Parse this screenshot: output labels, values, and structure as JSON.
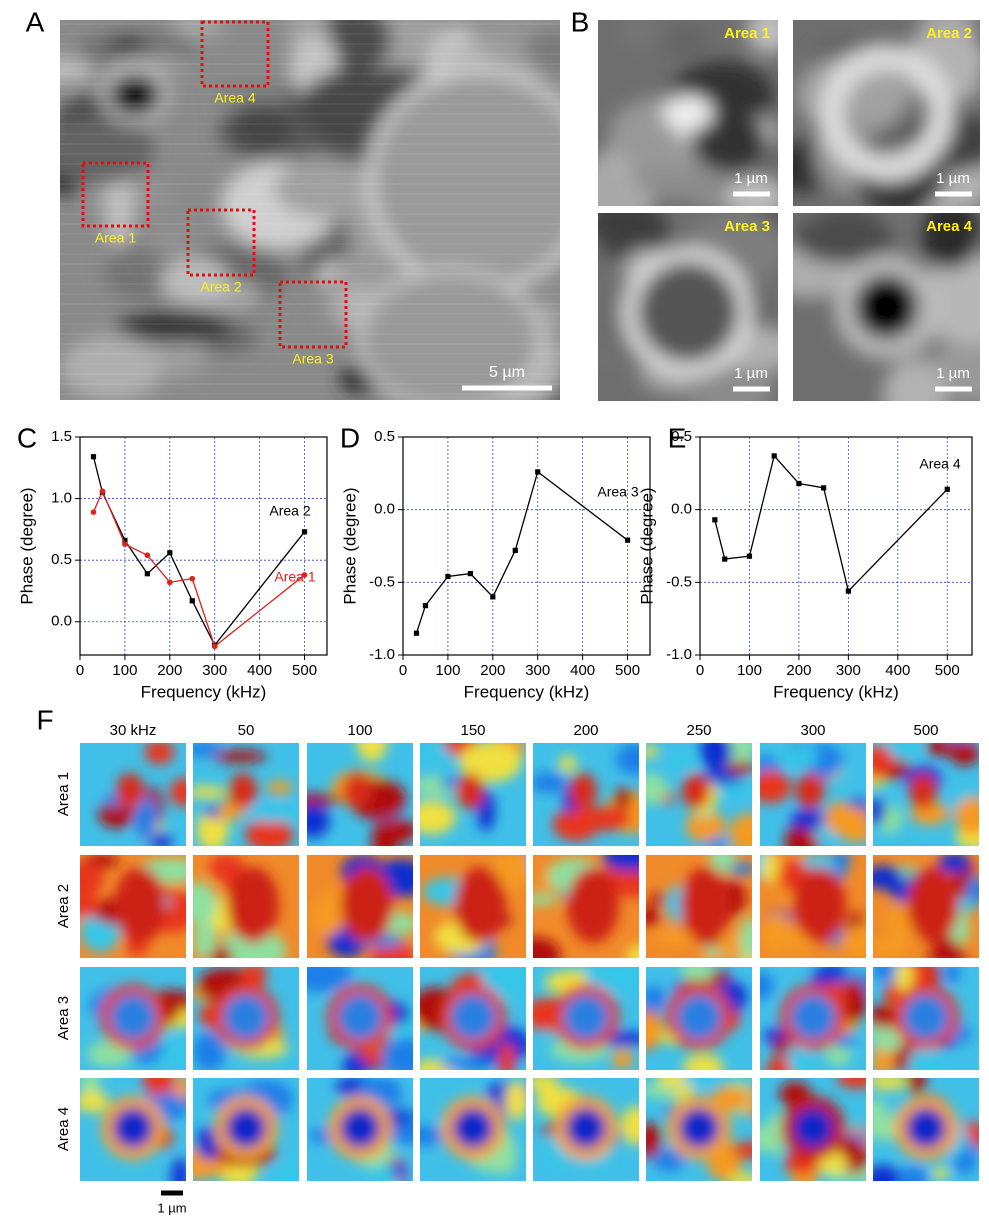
{
  "chart_data": [
    {
      "type": "line",
      "xlabel": "Frequency (kHz)",
      "ylabel": "Phase (degree)",
      "x": [
        30,
        50,
        100,
        150,
        200,
        250,
        300,
        500
      ],
      "series": [
        {
          "name": "Area 2",
          "color": "#000000",
          "marker": "square",
          "values": [
            1.34,
            1.05,
            0.66,
            0.39,
            0.56,
            0.17,
            -0.19,
            0.73
          ]
        },
        {
          "name": "Area 1",
          "color": "#e0201b",
          "marker": "circle",
          "values": [
            0.89,
            1.06,
            0.63,
            0.54,
            0.32,
            0.35,
            -0.2,
            0.38
          ]
        }
      ],
      "xlim": [
        0,
        550
      ],
      "xticks": [
        0,
        100,
        200,
        300,
        400,
        500
      ],
      "ylim": [
        -0.27,
        1.5
      ],
      "yticks": [
        {
          "value": 0,
          "label": "0.0"
        },
        0.5,
        {
          "value": 1,
          "label": "1.0"
        },
        1.5
      ],
      "grid": true
    },
    {
      "type": "line",
      "xlabel": "Frequency (kHz)",
      "ylabel": "Phase (degree)",
      "x": [
        30,
        50,
        100,
        150,
        200,
        250,
        300,
        500
      ],
      "series": [
        {
          "name": "Area 3",
          "color": "#000000",
          "marker": "square",
          "values": [
            -0.85,
            -0.66,
            -0.46,
            -0.44,
            -0.6,
            -0.28,
            0.26,
            -0.21
          ]
        }
      ],
      "xlim": [
        0,
        550
      ],
      "xticks": [
        0,
        100,
        200,
        300,
        400,
        500
      ],
      "ylim": [
        -1,
        0.5
      ],
      "yticks": [
        {
          "value": -1,
          "label": "-1.0"
        },
        -0.5,
        {
          "value": 0,
          "label": "0.0"
        },
        0.5
      ],
      "grid": true
    },
    {
      "type": "line",
      "xlabel": "Frequency (kHz)",
      "ylabel": "Phase (degree)",
      "x": [
        30,
        50,
        100,
        150,
        200,
        250,
        300,
        500
      ],
      "series": [
        {
          "name": "Area 4",
          "color": "#000000",
          "marker": "square",
          "values": [
            -0.07,
            -0.34,
            -0.32,
            0.37,
            0.18,
            0.15,
            -0.56,
            0.14
          ]
        }
      ],
      "xlim": [
        0,
        550
      ],
      "xticks": [
        0,
        100,
        200,
        300,
        400,
        500
      ],
      "ylim": [
        -1,
        0.5
      ],
      "yticks": [
        {
          "value": -1,
          "label": "-1.0"
        },
        -0.5,
        {
          "value": 0,
          "label": "0.0"
        },
        0.5
      ],
      "grid": true
    }
  ],
  "figure": {
    "panel_labels": [
      "A",
      "B",
      "C",
      "D",
      "E",
      "F"
    ],
    "panel_a": {
      "areas": [
        "Area 4",
        "Area 1",
        "Area 2",
        "Area 3"
      ],
      "scale_bar": "5 µm"
    },
    "panel_b": {
      "tiles": [
        {
          "label": "Area 1",
          "scale_bar": "1 µm"
        },
        {
          "label": "Area 2",
          "scale_bar": "1 µm"
        },
        {
          "label": "Area 3",
          "scale_bar": "1 µm"
        },
        {
          "label": "Area 4",
          "scale_bar": "1 µm"
        }
      ]
    },
    "panel_f": {
      "columns": [
        "30 kHz",
        "50",
        "100",
        "150",
        "200",
        "250",
        "300",
        "500"
      ],
      "rows": [
        "Area 1",
        "Area 2",
        "Area 3",
        "Area 4"
      ],
      "scale_bar": "1 µm"
    }
  }
}
